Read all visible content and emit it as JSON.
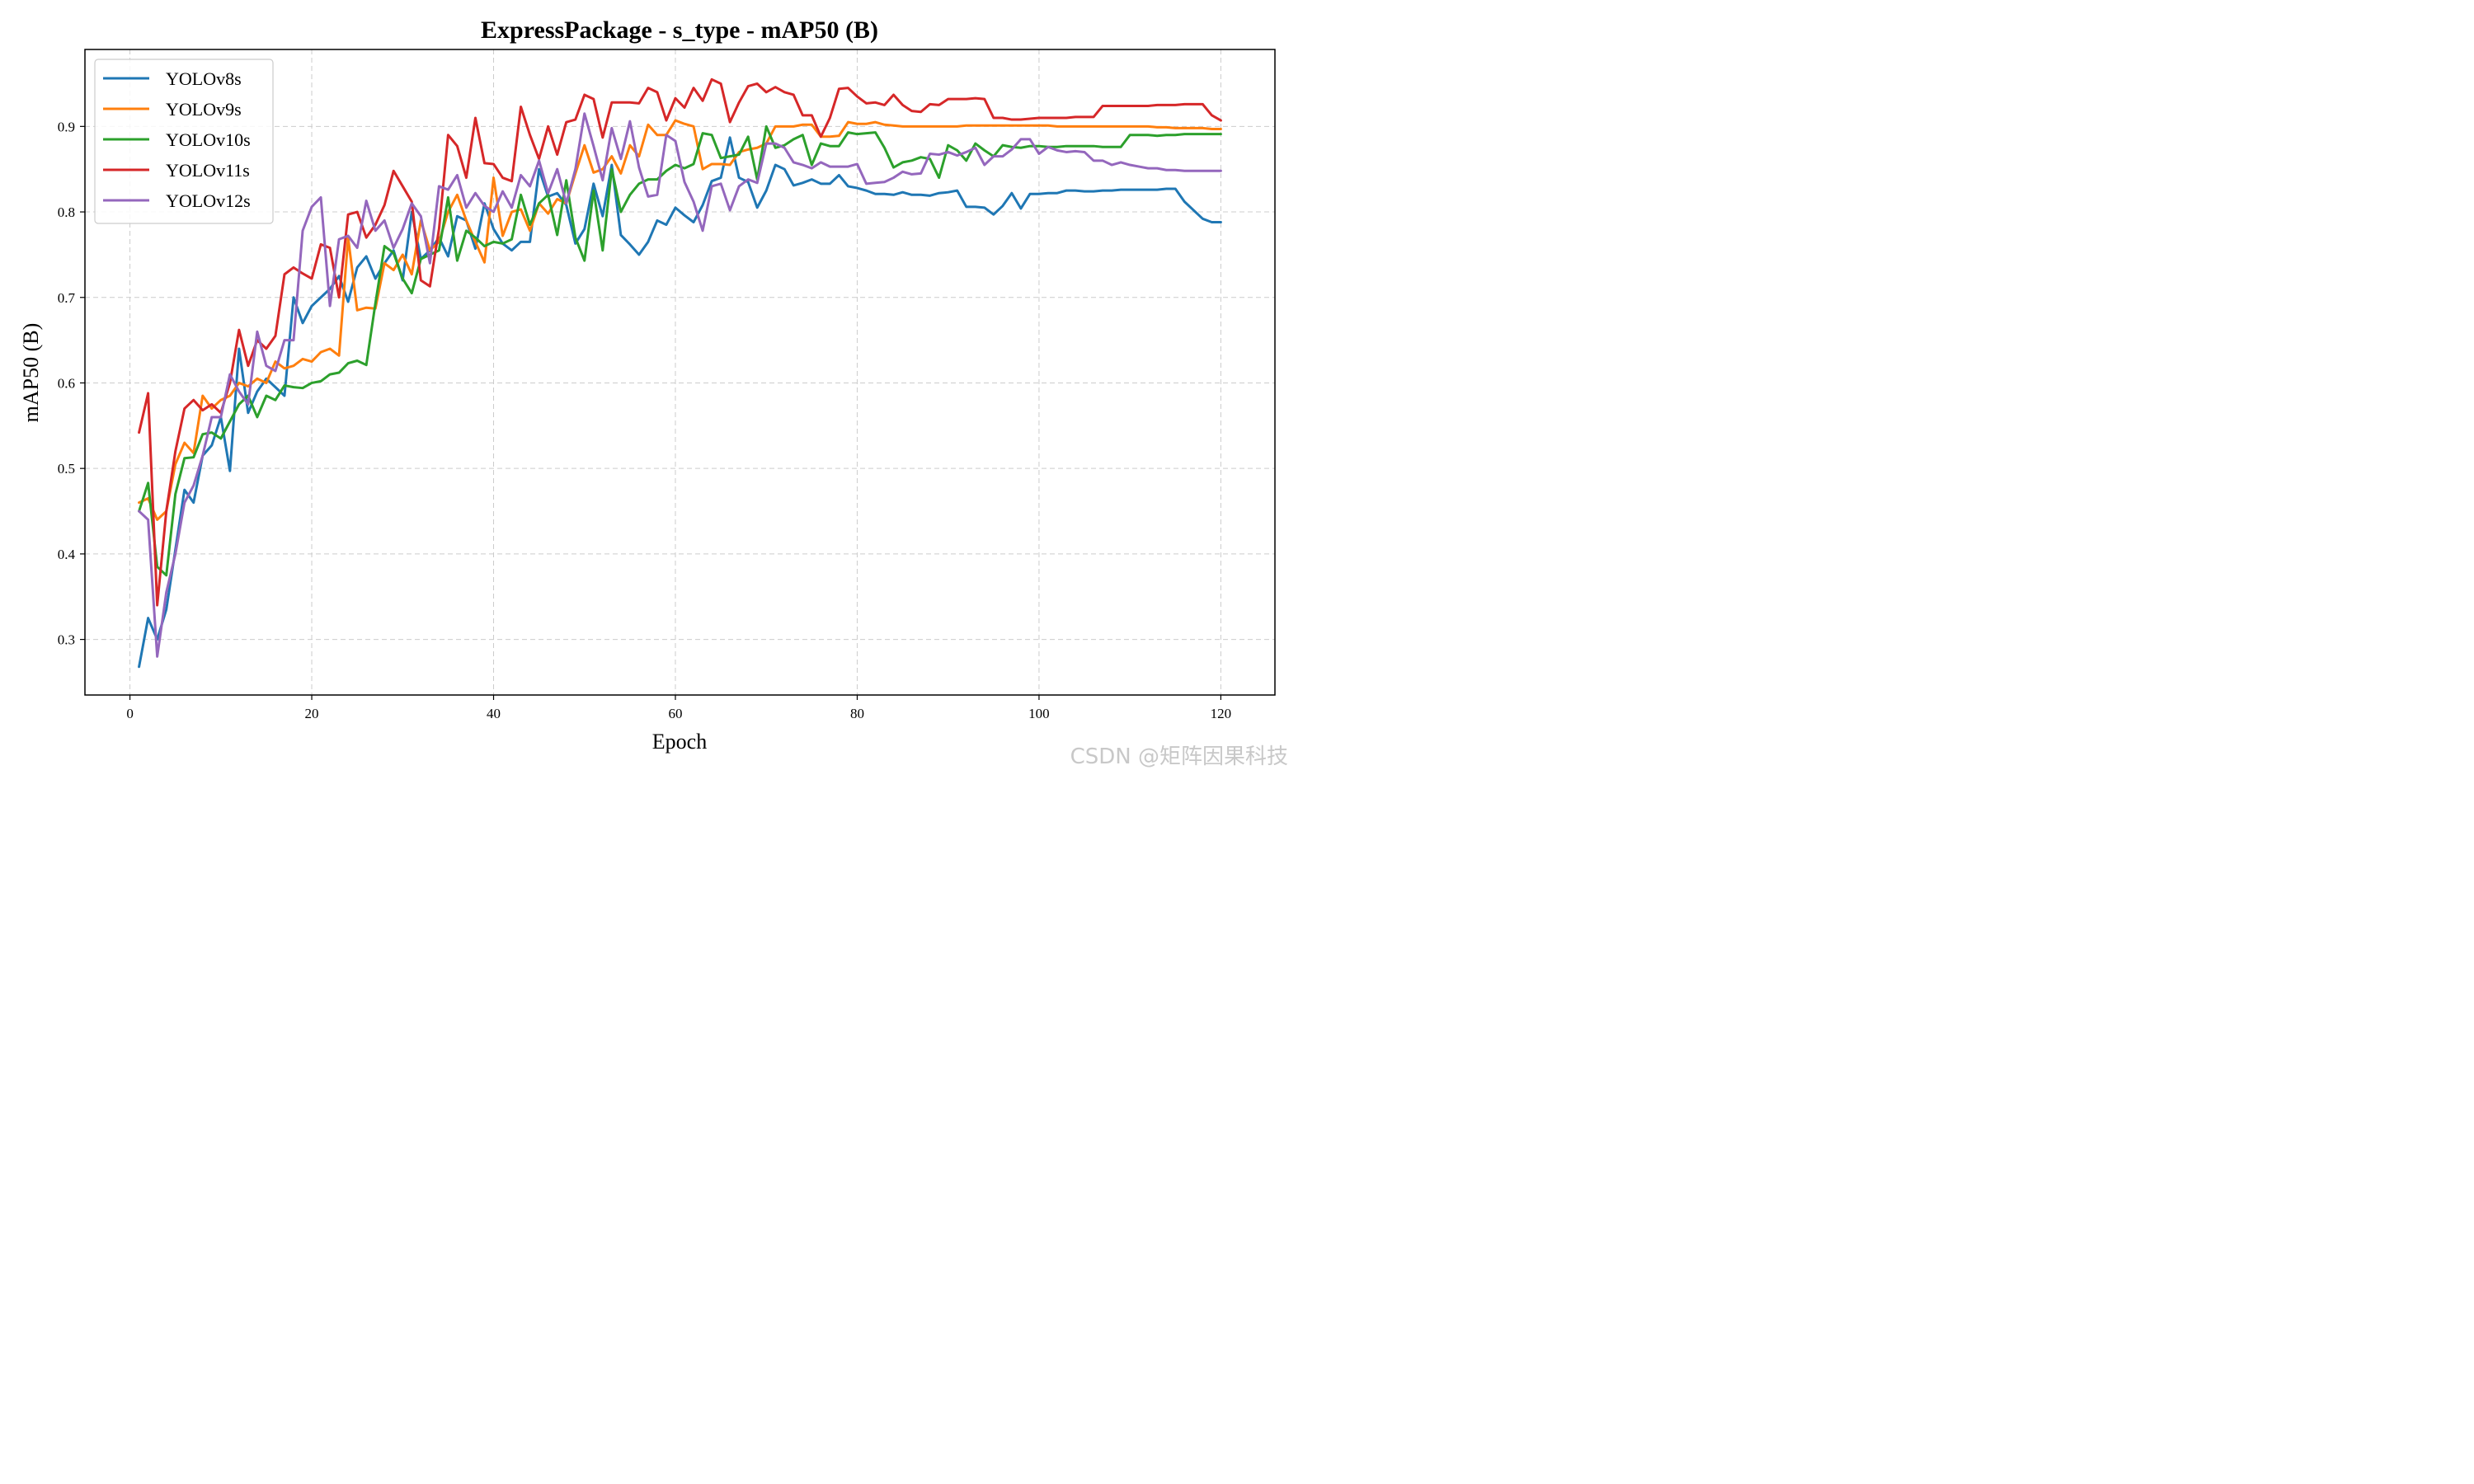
{
  "watermark": "CSDN @矩阵因果科技",
  "chart_data": {
    "type": "line",
    "title": "ExpressPackage - s_type - mAP50 (B)",
    "xlabel": "Epoch",
    "ylabel": "mAP50 (B)",
    "xlim": [
      -4.95,
      125.95
    ],
    "ylim": [
      0.235,
      0.99
    ],
    "xticks": [
      0,
      20,
      40,
      60,
      80,
      100,
      120
    ],
    "yticks": [
      0.3,
      0.4,
      0.5,
      0.6,
      0.7,
      0.8,
      0.9
    ],
    "grid": true,
    "legend_position": "top-left",
    "x_start": 1,
    "series": [
      {
        "name": "YOLOv8s",
        "color": "#1f77b4",
        "values": [
          0.268,
          0.325,
          0.3,
          0.335,
          0.405,
          0.475,
          0.46,
          0.515,
          0.527,
          0.56,
          0.497,
          0.64,
          0.565,
          0.59,
          0.605,
          0.595,
          0.585,
          0.7,
          0.67,
          0.69,
          0.7,
          0.71,
          0.725,
          0.695,
          0.735,
          0.748,
          0.722,
          0.74,
          0.755,
          0.72,
          0.8,
          0.745,
          0.755,
          0.77,
          0.748,
          0.795,
          0.79,
          0.757,
          0.81,
          0.78,
          0.763,
          0.755,
          0.765,
          0.765,
          0.85,
          0.818,
          0.822,
          0.808,
          0.763,
          0.78,
          0.833,
          0.795,
          0.855,
          0.773,
          0.762,
          0.75,
          0.765,
          0.79,
          0.785,
          0.805,
          0.796,
          0.788,
          0.808,
          0.836,
          0.84,
          0.887,
          0.84,
          0.835,
          0.805,
          0.825,
          0.855,
          0.85,
          0.831,
          0.834,
          0.838,
          0.833,
          0.833,
          0.843,
          0.83,
          0.828,
          0.825,
          0.821,
          0.821,
          0.82,
          0.823,
          0.82,
          0.82,
          0.819,
          0.822,
          0.823,
          0.825,
          0.806,
          0.806,
          0.805,
          0.797,
          0.807,
          0.822,
          0.804,
          0.821,
          0.821,
          0.822,
          0.822,
          0.825,
          0.825,
          0.824,
          0.824,
          0.825,
          0.825,
          0.826,
          0.826,
          0.826,
          0.826,
          0.826,
          0.827,
          0.827,
          0.812,
          0.802,
          0.792,
          0.788,
          0.788
        ]
      },
      {
        "name": "YOLOv9s",
        "color": "#ff7f0e",
        "values": [
          0.46,
          0.465,
          0.44,
          0.45,
          0.505,
          0.53,
          0.518,
          0.585,
          0.57,
          0.58,
          0.585,
          0.6,
          0.596,
          0.605,
          0.6,
          0.625,
          0.617,
          0.62,
          0.628,
          0.625,
          0.636,
          0.64,
          0.632,
          0.77,
          0.685,
          0.688,
          0.687,
          0.74,
          0.732,
          0.75,
          0.727,
          0.79,
          0.755,
          0.765,
          0.8,
          0.82,
          0.79,
          0.765,
          0.741,
          0.84,
          0.772,
          0.8,
          0.803,
          0.778,
          0.81,
          0.798,
          0.815,
          0.81,
          0.845,
          0.878,
          0.846,
          0.85,
          0.865,
          0.845,
          0.878,
          0.865,
          0.902,
          0.89,
          0.89,
          0.907,
          0.903,
          0.9,
          0.85,
          0.856,
          0.856,
          0.855,
          0.87,
          0.873,
          0.875,
          0.88,
          0.9,
          0.9,
          0.9,
          0.902,
          0.902,
          0.888,
          0.888,
          0.889,
          0.905,
          0.903,
          0.903,
          0.905,
          0.902,
          0.901,
          0.9,
          0.9,
          0.9,
          0.9,
          0.9,
          0.9,
          0.9,
          0.901,
          0.901,
          0.901,
          0.901,
          0.901,
          0.901,
          0.901,
          0.901,
          0.901,
          0.901,
          0.9,
          0.9,
          0.9,
          0.9,
          0.9,
          0.9,
          0.9,
          0.9,
          0.9,
          0.9,
          0.9,
          0.899,
          0.899,
          0.898,
          0.898,
          0.898,
          0.898,
          0.897,
          0.897
        ]
      },
      {
        "name": "YOLOv10s",
        "color": "#2ca02c",
        "values": [
          0.45,
          0.483,
          0.385,
          0.375,
          0.47,
          0.512,
          0.513,
          0.54,
          0.542,
          0.535,
          0.555,
          0.575,
          0.585,
          0.56,
          0.585,
          0.58,
          0.597,
          0.595,
          0.594,
          0.6,
          0.602,
          0.61,
          0.612,
          0.623,
          0.626,
          0.621,
          0.693,
          0.76,
          0.752,
          0.722,
          0.705,
          0.745,
          0.75,
          0.755,
          0.817,
          0.743,
          0.778,
          0.77,
          0.76,
          0.765,
          0.763,
          0.768,
          0.82,
          0.785,
          0.81,
          0.82,
          0.773,
          0.837,
          0.77,
          0.743,
          0.825,
          0.755,
          0.85,
          0.8,
          0.82,
          0.833,
          0.838,
          0.838,
          0.848,
          0.855,
          0.851,
          0.856,
          0.892,
          0.89,
          0.863,
          0.865,
          0.867,
          0.888,
          0.838,
          0.9,
          0.875,
          0.878,
          0.885,
          0.89,
          0.855,
          0.88,
          0.877,
          0.877,
          0.893,
          0.891,
          0.892,
          0.893,
          0.875,
          0.852,
          0.858,
          0.86,
          0.864,
          0.862,
          0.84,
          0.878,
          0.872,
          0.86,
          0.88,
          0.872,
          0.865,
          0.878,
          0.876,
          0.875,
          0.877,
          0.877,
          0.876,
          0.876,
          0.877,
          0.877,
          0.877,
          0.877,
          0.876,
          0.876,
          0.876,
          0.89,
          0.89,
          0.89,
          0.889,
          0.89,
          0.89,
          0.891,
          0.891,
          0.891,
          0.891,
          0.891
        ]
      },
      {
        "name": "YOLOv11s",
        "color": "#d62728",
        "values": [
          0.542,
          0.588,
          0.34,
          0.45,
          0.52,
          0.57,
          0.58,
          0.568,
          0.575,
          0.565,
          0.6,
          0.662,
          0.62,
          0.65,
          0.64,
          0.655,
          0.727,
          0.735,
          0.728,
          0.722,
          0.762,
          0.758,
          0.7,
          0.797,
          0.8,
          0.77,
          0.785,
          0.808,
          0.848,
          0.83,
          0.812,
          0.72,
          0.713,
          0.78,
          0.89,
          0.877,
          0.84,
          0.91,
          0.857,
          0.856,
          0.84,
          0.836,
          0.923,
          0.89,
          0.862,
          0.9,
          0.867,
          0.905,
          0.908,
          0.937,
          0.932,
          0.887,
          0.928,
          0.928,
          0.928,
          0.927,
          0.945,
          0.94,
          0.907,
          0.933,
          0.922,
          0.945,
          0.93,
          0.955,
          0.95,
          0.905,
          0.928,
          0.947,
          0.95,
          0.94,
          0.946,
          0.94,
          0.937,
          0.913,
          0.913,
          0.888,
          0.91,
          0.944,
          0.945,
          0.935,
          0.927,
          0.928,
          0.925,
          0.937,
          0.925,
          0.918,
          0.917,
          0.926,
          0.925,
          0.932,
          0.932,
          0.932,
          0.933,
          0.932,
          0.91,
          0.91,
          0.908,
          0.908,
          0.909,
          0.91,
          0.91,
          0.91,
          0.91,
          0.911,
          0.911,
          0.911,
          0.924,
          0.924,
          0.924,
          0.924,
          0.924,
          0.924,
          0.925,
          0.925,
          0.925,
          0.926,
          0.926,
          0.926,
          0.913,
          0.907
        ]
      },
      {
        "name": "YOLOv12s",
        "color": "#9467bd",
        "values": [
          0.45,
          0.44,
          0.28,
          0.355,
          0.4,
          0.46,
          0.48,
          0.515,
          0.56,
          0.56,
          0.61,
          0.59,
          0.575,
          0.66,
          0.62,
          0.614,
          0.65,
          0.65,
          0.778,
          0.806,
          0.817,
          0.69,
          0.768,
          0.772,
          0.758,
          0.813,
          0.778,
          0.79,
          0.758,
          0.78,
          0.81,
          0.795,
          0.74,
          0.83,
          0.826,
          0.843,
          0.805,
          0.822,
          0.807,
          0.8,
          0.824,
          0.805,
          0.843,
          0.83,
          0.86,
          0.822,
          0.85,
          0.81,
          0.85,
          0.915,
          0.877,
          0.837,
          0.898,
          0.862,
          0.906,
          0.852,
          0.818,
          0.82,
          0.89,
          0.883,
          0.835,
          0.812,
          0.778,
          0.83,
          0.833,
          0.802,
          0.83,
          0.838,
          0.834,
          0.88,
          0.88,
          0.875,
          0.858,
          0.855,
          0.851,
          0.858,
          0.853,
          0.853,
          0.853,
          0.856,
          0.833,
          0.834,
          0.835,
          0.84,
          0.847,
          0.844,
          0.845,
          0.868,
          0.867,
          0.87,
          0.866,
          0.87,
          0.875,
          0.855,
          0.865,
          0.865,
          0.873,
          0.885,
          0.885,
          0.868,
          0.876,
          0.872,
          0.87,
          0.871,
          0.87,
          0.86,
          0.86,
          0.855,
          0.858,
          0.855,
          0.853,
          0.851,
          0.851,
          0.849,
          0.849,
          0.848,
          0.848,
          0.848,
          0.848,
          0.848
        ]
      }
    ]
  }
}
